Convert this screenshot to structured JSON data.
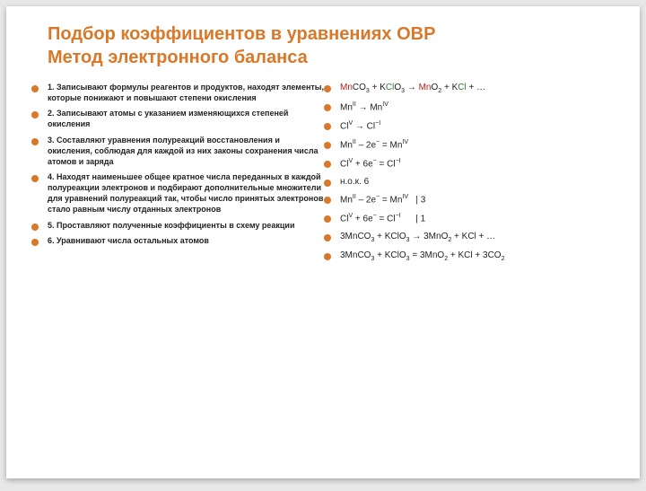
{
  "title_line1": "Подбор коэффициентов в уравнениях ОВР",
  "title_line2": "Метод электронного баланса",
  "left_items": [
    "1. Записывают формулы реагентов и продуктов, находят элементы, которые понижают и повышают степени окисления",
    "2. Записывают атомы с указанием изменяющихся степеней окисления",
    "3. Составляют уравнения полуреакций восстановления и окисления, соблюдая для каждой из них законы сохранения числа атомов и заряда",
    "4. Находят наименьшее общее кратное  числа переданных в каждой полуреакции электронов и подбирают дополнительные множители для уравнений полуреакций так, чтобы число принятых электронов стало равным числу отданных электронов",
    "5. Проставляют полученные коэффициенты в схему реакции",
    "6. Уравнивают числа остальных атомов"
  ],
  "right_items": [
    {
      "html": "<span class='c-red'>Mn</span>CO<sub>3</sub> + K<span class='c-grn'>Cl</span>O<sub>3</sub> → <span class='c-red'>Mn</span>O<sub>2</sub> + K<span class='c-grn'>Cl</span> + …",
      "gap": "gap-lg"
    },
    {
      "html": "Mn<sup>II</sup> → Mn<sup>IV</sup>",
      "gap": ""
    },
    {
      "html": "Cl<sup>V</sup> → Cl<sup>−I</sup>",
      "gap": "gap-md"
    },
    {
      "html": "Mn<sup>II</sup> – 2e<sup>−</sup> = Mn<sup>IV</sup>",
      "gap": ""
    },
    {
      "html": "Cl<sup>V</sup> + 6e<sup>−</sup> = Cl<sup>−I</sup>",
      "gap": "gap-md"
    },
    {
      "html": "н.о.к. 6",
      "gap": ""
    },
    {
      "html": "Mn<sup>II</sup> – 2e<sup>−</sup> = Mn<sup>IV</sup>&nbsp;&nbsp;&nbsp;| 3",
      "gap": ""
    },
    {
      "html": "Cl<sup>V</sup> + 6e<sup>−</sup> = Cl<sup>−I</sup>&nbsp;&nbsp;&nbsp;&nbsp;&nbsp;&nbsp;| 1",
      "gap": "gap-lg"
    },
    {
      "html": "3MnCO<sub>3</sub> + KClO<sub>3</sub> → 3MnO<sub>2</sub> + KCl +  …",
      "gap": "gap-xl"
    },
    {
      "html": "3MnCO<sub>3</sub> + KClO<sub>3</sub> = 3MnO<sub>2</sub> + KCl + 3CO<sub>2</sub>",
      "gap": ""
    }
  ],
  "colors": {
    "accent": "#d97828",
    "red": "#b02318",
    "green": "#2e7d32",
    "bg": "#e8e8e8",
    "slide_bg": "#ffffff"
  }
}
